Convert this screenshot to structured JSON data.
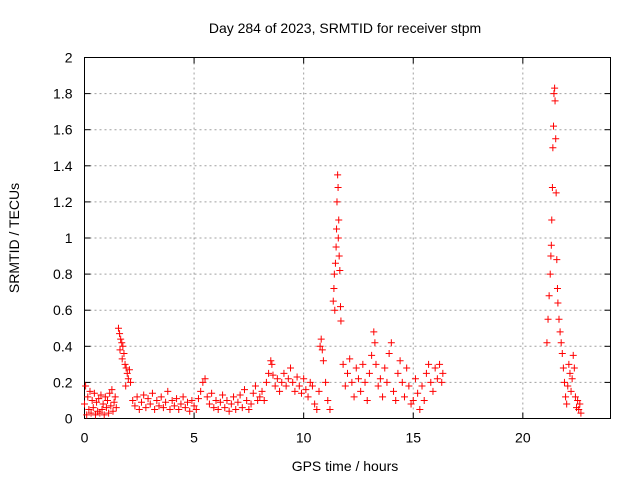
{
  "chart_data": {
    "type": "scatter",
    "title": "Day 284 of 2023, SRMTID for receiver stpm",
    "xlabel": "GPS time / hours",
    "ylabel": "SRMTID / TECUs",
    "xlim": [
      0,
      24
    ],
    "ylim": [
      0,
      2
    ],
    "xticks": [
      0,
      5,
      10,
      15,
      20
    ],
    "yticks": [
      0,
      0.2,
      0.4,
      0.6,
      0.8,
      1,
      1.2,
      1.4,
      1.6,
      1.8,
      2
    ],
    "ytick_labels": [
      "0",
      "0.2",
      "0.4",
      "0.6",
      "0.8",
      "1",
      "1.2",
      "1.4",
      "1.6",
      "1.8",
      "2"
    ],
    "xtick_labels": [
      "0",
      "5",
      "10",
      "15",
      "20"
    ],
    "grid": true,
    "marker": "+",
    "color": "#ff0000",
    "series": [
      {
        "points": [
          [
            0.0,
            0.08
          ],
          [
            0.05,
            0.18
          ],
          [
            0.1,
            0.02
          ],
          [
            0.15,
            0.12
          ],
          [
            0.2,
            0.05
          ],
          [
            0.25,
            0.15
          ],
          [
            0.3,
            0.03
          ],
          [
            0.35,
            0.1
          ],
          [
            0.4,
            0.06
          ],
          [
            0.45,
            0.14
          ],
          [
            0.5,
            0.02
          ],
          [
            0.55,
            0.09
          ],
          [
            0.6,
            0.04
          ],
          [
            0.65,
            0.11
          ],
          [
            0.7,
            0.03
          ],
          [
            0.75,
            0.13
          ],
          [
            0.8,
            0.05
          ],
          [
            0.85,
            0.08
          ],
          [
            0.9,
            0.02
          ],
          [
            0.95,
            0.12
          ],
          [
            1.0,
            0.06
          ],
          [
            1.05,
            0.1
          ],
          [
            1.1,
            0.03
          ],
          [
            1.15,
            0.14
          ],
          [
            1.2,
            0.07
          ],
          [
            1.25,
            0.16
          ],
          [
            1.3,
            0.04
          ],
          [
            1.35,
            0.09
          ],
          [
            1.4,
            0.12
          ],
          [
            1.45,
            0.06
          ],
          [
            1.55,
            0.5
          ],
          [
            1.6,
            0.47
          ],
          [
            1.65,
            0.44
          ],
          [
            1.7,
            0.42
          ],
          [
            1.75,
            0.4
          ],
          [
            1.8,
            0.36
          ],
          [
            1.85,
            0.3
          ],
          [
            1.9,
            0.28
          ],
          [
            1.95,
            0.25
          ],
          [
            2.0,
            0.22
          ],
          [
            2.05,
            0.27
          ],
          [
            2.1,
            0.2
          ],
          [
            1.62,
            0.38
          ],
          [
            1.72,
            0.33
          ],
          [
            1.88,
            0.18
          ],
          [
            2.2,
            0.1
          ],
          [
            2.3,
            0.07
          ],
          [
            2.4,
            0.12
          ],
          [
            2.5,
            0.05
          ],
          [
            2.6,
            0.09
          ],
          [
            2.7,
            0.13
          ],
          [
            2.8,
            0.06
          ],
          [
            2.9,
            0.11
          ],
          [
            3.0,
            0.08
          ],
          [
            3.1,
            0.14
          ],
          [
            3.2,
            0.05
          ],
          [
            3.3,
            0.1
          ],
          [
            3.4,
            0.07
          ],
          [
            3.5,
            0.12
          ],
          [
            3.6,
            0.06
          ],
          [
            3.7,
            0.09
          ],
          [
            3.8,
            0.15
          ],
          [
            3.9,
            0.05
          ],
          [
            4.0,
            0.1
          ],
          [
            4.1,
            0.07
          ],
          [
            4.2,
            0.11
          ],
          [
            4.3,
            0.05
          ],
          [
            4.4,
            0.08
          ],
          [
            4.5,
            0.12
          ],
          [
            4.6,
            0.06
          ],
          [
            4.7,
            0.09
          ],
          [
            4.8,
            0.04
          ],
          [
            4.9,
            0.1
          ],
          [
            5.0,
            0.07
          ],
          [
            5.1,
            0.05
          ],
          [
            5.2,
            0.11
          ],
          [
            5.3,
            0.15
          ],
          [
            5.4,
            0.2
          ],
          [
            5.5,
            0.22
          ],
          [
            5.6,
            0.12
          ],
          [
            5.7,
            0.08
          ],
          [
            5.8,
            0.14
          ],
          [
            5.9,
            0.06
          ],
          [
            6.0,
            0.1
          ],
          [
            6.1,
            0.05
          ],
          [
            6.2,
            0.09
          ],
          [
            6.3,
            0.13
          ],
          [
            6.4,
            0.06
          ],
          [
            6.5,
            0.1
          ],
          [
            6.6,
            0.04
          ],
          [
            6.7,
            0.08
          ],
          [
            6.8,
            0.12
          ],
          [
            6.9,
            0.05
          ],
          [
            7.0,
            0.09
          ],
          [
            7.1,
            0.13
          ],
          [
            7.2,
            0.06
          ],
          [
            7.3,
            0.16
          ],
          [
            7.4,
            0.1
          ],
          [
            7.5,
            0.05
          ],
          [
            7.6,
            0.08
          ],
          [
            7.7,
            0.14
          ],
          [
            7.8,
            0.18
          ],
          [
            7.9,
            0.1
          ],
          [
            8.0,
            0.12
          ],
          [
            8.1,
            0.15
          ],
          [
            8.2,
            0.1
          ],
          [
            8.3,
            0.2
          ],
          [
            8.4,
            0.25
          ],
          [
            8.5,
            0.32
          ],
          [
            8.55,
            0.3
          ],
          [
            8.6,
            0.24
          ],
          [
            8.7,
            0.18
          ],
          [
            8.8,
            0.22
          ],
          [
            8.9,
            0.15
          ],
          [
            9.0,
            0.2
          ],
          [
            9.1,
            0.25
          ],
          [
            9.2,
            0.18
          ],
          [
            9.3,
            0.22
          ],
          [
            9.4,
            0.28
          ],
          [
            9.5,
            0.2
          ],
          [
            9.6,
            0.15
          ],
          [
            9.7,
            0.23
          ],
          [
            9.8,
            0.18
          ],
          [
            9.9,
            0.14
          ],
          [
            10.0,
            0.22
          ],
          [
            10.1,
            0.16
          ],
          [
            10.2,
            0.12
          ],
          [
            10.3,
            0.2
          ],
          [
            10.4,
            0.18
          ],
          [
            10.5,
            0.08
          ],
          [
            10.6,
            0.05
          ],
          [
            10.7,
            0.15
          ],
          [
            10.75,
            0.4
          ],
          [
            10.8,
            0.44
          ],
          [
            10.85,
            0.38
          ],
          [
            10.9,
            0.32
          ],
          [
            11.0,
            0.2
          ],
          [
            11.1,
            0.1
          ],
          [
            11.2,
            0.05
          ],
          [
            11.35,
            0.65
          ],
          [
            11.38,
            0.72
          ],
          [
            11.4,
            0.8
          ],
          [
            11.45,
            0.86
          ],
          [
            11.48,
            0.95
          ],
          [
            11.5,
            1.05
          ],
          [
            11.52,
            1.2
          ],
          [
            11.55,
            1.35
          ],
          [
            11.57,
            1.28
          ],
          [
            11.6,
            1.1
          ],
          [
            11.62,
            0.9
          ],
          [
            11.65,
            0.82
          ],
          [
            11.68,
            0.62
          ],
          [
            11.7,
            0.54
          ],
          [
            11.42,
            0.6
          ],
          [
            11.58,
            1.0
          ],
          [
            11.8,
            0.3
          ],
          [
            11.9,
            0.18
          ],
          [
            12.0,
            0.25
          ],
          [
            12.1,
            0.33
          ],
          [
            12.2,
            0.2
          ],
          [
            12.3,
            0.12
          ],
          [
            12.4,
            0.28
          ],
          [
            12.5,
            0.22
          ],
          [
            12.6,
            0.15
          ],
          [
            12.7,
            0.3
          ],
          [
            12.8,
            0.2
          ],
          [
            12.9,
            0.1
          ],
          [
            13.0,
            0.25
          ],
          [
            13.1,
            0.35
          ],
          [
            13.2,
            0.48
          ],
          [
            13.25,
            0.42
          ],
          [
            13.3,
            0.3
          ],
          [
            13.4,
            0.18
          ],
          [
            13.5,
            0.22
          ],
          [
            13.6,
            0.12
          ],
          [
            13.7,
            0.28
          ],
          [
            13.8,
            0.2
          ],
          [
            13.9,
            0.36
          ],
          [
            14.0,
            0.42
          ],
          [
            14.1,
            0.15
          ],
          [
            14.2,
            0.1
          ],
          [
            14.3,
            0.25
          ],
          [
            14.4,
            0.32
          ],
          [
            14.5,
            0.2
          ],
          [
            14.6,
            0.12
          ],
          [
            14.7,
            0.28
          ],
          [
            14.8,
            0.18
          ],
          [
            14.9,
            0.08
          ],
          [
            15.0,
            0.1
          ],
          [
            15.1,
            0.22
          ],
          [
            15.2,
            0.14
          ],
          [
            15.3,
            0.05
          ],
          [
            15.4,
            0.18
          ],
          [
            15.5,
            0.1
          ],
          [
            15.6,
            0.25
          ],
          [
            15.7,
            0.3
          ],
          [
            15.8,
            0.2
          ],
          [
            15.9,
            0.15
          ],
          [
            16.0,
            0.28
          ],
          [
            16.1,
            0.22
          ],
          [
            16.2,
            0.3
          ],
          [
            16.3,
            0.2
          ],
          [
            16.35,
            0.25
          ],
          [
            21.1,
            0.42
          ],
          [
            21.15,
            0.55
          ],
          [
            21.2,
            0.68
          ],
          [
            21.25,
            0.8
          ],
          [
            21.28,
            0.9
          ],
          [
            21.3,
            0.96
          ],
          [
            21.32,
            1.1
          ],
          [
            21.35,
            1.28
          ],
          [
            21.37,
            1.5
          ],
          [
            21.4,
            1.62
          ],
          [
            21.42,
            1.8
          ],
          [
            21.45,
            1.83
          ],
          [
            21.47,
            1.76
          ],
          [
            21.5,
            1.55
          ],
          [
            21.52,
            1.25
          ],
          [
            21.55,
            0.88
          ],
          [
            21.58,
            0.72
          ],
          [
            21.6,
            0.64
          ],
          [
            21.65,
            0.55
          ],
          [
            21.7,
            0.48
          ],
          [
            21.75,
            0.42
          ],
          [
            21.8,
            0.36
          ],
          [
            21.85,
            0.28
          ],
          [
            21.9,
            0.2
          ],
          [
            21.95,
            0.12
          ],
          [
            22.0,
            0.08
          ],
          [
            22.05,
            0.18
          ],
          [
            22.1,
            0.3
          ],
          [
            22.15,
            0.25
          ],
          [
            22.2,
            0.15
          ],
          [
            22.25,
            0.22
          ],
          [
            22.3,
            0.35
          ],
          [
            22.35,
            0.28
          ],
          [
            22.4,
            0.12
          ],
          [
            22.45,
            0.06
          ],
          [
            22.5,
            0.1
          ],
          [
            22.55,
            0.05
          ],
          [
            22.6,
            0.08
          ],
          [
            22.65,
            0.03
          ]
        ]
      }
    ]
  }
}
